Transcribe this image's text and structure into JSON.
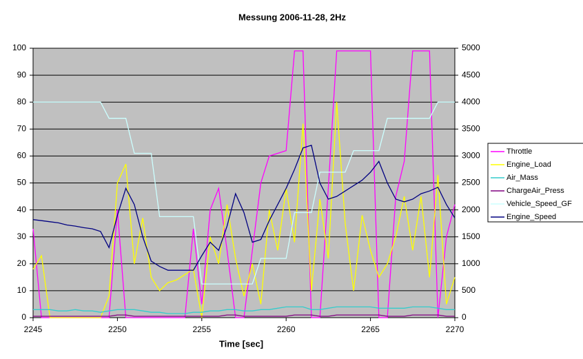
{
  "chart_data": {
    "type": "line",
    "title": "Messung 2006-11-28, 2Hz",
    "x_label": "Time [sec]",
    "x": [
      2245,
      2245.5,
      2246,
      2246.5,
      2247,
      2247.5,
      2248,
      2248.5,
      2249,
      2249.5,
      2250,
      2250.5,
      2251,
      2251.5,
      2252,
      2252.5,
      2253,
      2253.5,
      2254,
      2254.5,
      2255,
      2255.5,
      2256,
      2256.5,
      2257,
      2257.5,
      2258,
      2258.5,
      2259,
      2259.5,
      2260,
      2260.5,
      2261,
      2261.5,
      2262,
      2262.5,
      2263,
      2263.5,
      2264,
      2264.5,
      2265,
      2265.5,
      2266,
      2266.5,
      2267,
      2267.5,
      2268,
      2268.5,
      2269,
      2269.5,
      2270
    ],
    "xlim": [
      2245,
      2270
    ],
    "xticks": [
      2245,
      2250,
      2255,
      2260,
      2265,
      2270
    ],
    "ylim": [
      0,
      100
    ],
    "yticks": [
      0,
      10,
      20,
      30,
      40,
      50,
      60,
      70,
      80,
      90,
      100
    ],
    "y2lim": [
      0,
      5000
    ],
    "y2ticks": [
      0,
      500,
      1000,
      1500,
      2000,
      2500,
      3000,
      3500,
      4000,
      4500,
      5000
    ],
    "grid": true,
    "legend": "right",
    "series": [
      {
        "name": "Throttle",
        "color": "#ff00ff",
        "values": [
          33,
          0,
          0,
          0,
          0,
          0,
          0,
          0,
          0,
          0,
          40,
          0,
          0,
          0,
          0,
          0,
          0,
          0,
          0,
          33,
          5,
          40,
          48,
          25,
          0,
          0,
          25,
          50,
          60,
          61,
          62,
          99,
          99,
          0,
          0,
          48,
          99,
          99,
          99,
          99,
          99,
          0,
          0,
          45,
          58,
          99,
          99,
          99,
          0,
          30,
          42
        ]
      },
      {
        "name": "Engine_Load",
        "color": "#ffff00",
        "values": [
          18,
          23,
          0,
          0,
          0,
          0,
          0,
          0,
          0,
          8,
          50,
          57,
          20,
          37,
          15,
          10,
          13,
          14,
          16,
          18,
          0,
          30,
          20,
          42,
          22,
          8,
          20,
          5,
          40,
          25,
          48,
          28,
          72,
          10,
          44,
          22,
          80,
          35,
          10,
          38,
          25,
          15,
          20,
          30,
          45,
          25,
          45,
          15,
          53,
          5,
          15
        ]
      },
      {
        "name": "Air_Mass",
        "color": "#33cccc",
        "values": [
          3,
          3,
          3,
          2.5,
          2.5,
          3,
          2.5,
          2.5,
          2,
          2.5,
          3,
          3,
          3,
          2.5,
          2,
          2,
          1.5,
          1.5,
          1.5,
          2,
          2,
          2.5,
          2.5,
          3,
          3,
          2.5,
          2.5,
          3,
          3,
          3.5,
          4,
          4,
          4,
          3,
          3,
          3.5,
          4,
          4,
          4,
          4,
          4,
          3.5,
          3.5,
          3.5,
          3.5,
          4,
          4,
          4,
          3.5,
          3,
          3
        ]
      },
      {
        "name": "ChargeAir_Press",
        "color": "#800080",
        "values": [
          0.5,
          0.5,
          0.5,
          0.5,
          0.5,
          0.5,
          0.5,
          0.5,
          0.5,
          0.5,
          1,
          1,
          0.5,
          0.5,
          0.5,
          0.5,
          0.5,
          0.5,
          0.5,
          0.5,
          0.5,
          0.5,
          0.5,
          1,
          1,
          0.5,
          0.5,
          0.5,
          0.5,
          0.5,
          0.5,
          1,
          1,
          1,
          0.5,
          0.5,
          1,
          1,
          1,
          1,
          1,
          1,
          0.5,
          0.5,
          0.5,
          1,
          1,
          1,
          1,
          0.5,
          0.5
        ]
      },
      {
        "name": "Vehicle_Speed_GF",
        "color": "#ccffff",
        "values": [
          80,
          80,
          80,
          80,
          80,
          80,
          80,
          80,
          80,
          74,
          74,
          74,
          61,
          61,
          61,
          37.5,
          37.5,
          37.5,
          37.5,
          37.5,
          12.5,
          12.5,
          12.5,
          12.5,
          12.5,
          12.5,
          12.5,
          22,
          22,
          22,
          22,
          39,
          39,
          39,
          54,
          54,
          54,
          54,
          62,
          62,
          62,
          62,
          74,
          74,
          74,
          74,
          74,
          74,
          80,
          80,
          80
        ]
      },
      {
        "name": "Engine_Speed",
        "color": "#000080",
        "axis": "y2",
        "values": [
          1820,
          1800,
          1780,
          1760,
          1720,
          1700,
          1670,
          1650,
          1600,
          1300,
          1900,
          2400,
          2100,
          1500,
          1050,
          950,
          880,
          880,
          880,
          880,
          1150,
          1400,
          1250,
          1700,
          2300,
          1950,
          1400,
          1450,
          1800,
          2100,
          2400,
          2750,
          3150,
          3200,
          2500,
          2200,
          2250,
          2350,
          2450,
          2550,
          2700,
          2900,
          2500,
          2200,
          2150,
          2200,
          2300,
          2350,
          2420,
          2100,
          1850
        ]
      }
    ]
  }
}
